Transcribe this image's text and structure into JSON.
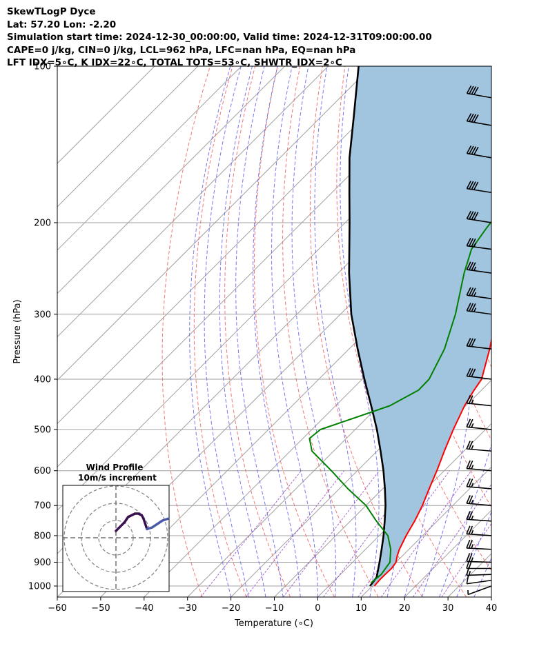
{
  "header": {
    "line1": "SkewTLogP Dyce",
    "line2": "Lat: 57.20   Lon: -2.20",
    "line3": "Simulation start time: 2024-12-30_00:00:00, Valid time: 2024-12-31T09:00:00.00",
    "line4": "CAPE=0 j/kg, CIN=0 j/kg, LCL=962 hPa, LFC=nan hPa, EQ=nan hPa",
    "line5": "LFT IDX=5∘C, K IDX=22∘C, TOTAL TOTS=53∘C, SHWTR_IDX=2∘C"
  },
  "chart_data": [
    {
      "type": "line",
      "chart_kind": "skew-T log-P",
      "xlabel": "Temperature (∘C)",
      "ylabel": "Pressure (hPa)",
      "xlim": [
        -60,
        40
      ],
      "ylim": [
        1050,
        100
      ],
      "y_scale": "log",
      "grid": true,
      "x_ticks": [
        -60,
        -50,
        -40,
        -30,
        -20,
        -10,
        0,
        10,
        20,
        30,
        40
      ],
      "y_ticks": [
        1000,
        900,
        800,
        700,
        600,
        500,
        400,
        300,
        200,
        100
      ],
      "colors": {
        "temperature": "#ff0000",
        "dewpoint": "#008000",
        "parcel": "#000000",
        "shading": "#a1c4df",
        "dry_adiabats": "#f06060",
        "moist_adiabats": "#6060f0",
        "mixing_ratio": "#9040c0",
        "isotherms": "#a0a0a0"
      },
      "series": [
        {
          "pressure": [
            1000,
            975,
            950,
            925,
            900,
            875,
            850,
            800,
            750,
            700,
            650,
            600,
            550,
            500,
            450,
            420,
            400,
            350,
            300,
            270,
            250,
            225,
            205,
            195,
            180,
            160,
            150,
            135,
            125,
            115,
            100
          ],
          "values": [
            10.5,
            10.3,
            10.3,
            10.4,
            10.0,
            8.8,
            7.8,
            6.2,
            4.8,
            3.0,
            0.7,
            -1.7,
            -4.5,
            -7.4,
            -10.3,
            -11.7,
            -12.5,
            -17.6,
            -24.0,
            -28.6,
            -32.0,
            -36.0,
            -40.0,
            -42.0,
            -43.0,
            -45.5,
            -47.4,
            -48.2,
            -49.3,
            -50.0,
            -51.0
          ]
        },
        {
          "pressure": [
            985,
            950,
            900,
            850,
            800,
            750,
            700,
            650,
            600,
            550,
            520,
            500,
            450,
            420,
            400,
            350,
            300,
            250,
            225,
            205,
            195,
            185,
            170,
            160,
            150,
            135,
            125,
            115,
            100
          ],
          "values": [
            9.0,
            9.4,
            8.6,
            5.8,
            2.0,
            -4.0,
            -10.0,
            -18.0,
            -26.0,
            -35.0,
            -38.5,
            -38.0,
            -27.5,
            -24.5,
            -24.6,
            -28.0,
            -33.5,
            -41.0,
            -44.8,
            -46.2,
            -46.8,
            -47.0,
            -46.0,
            -46.8,
            -47.6,
            -48.7,
            -49.6,
            -50.3,
            -51.2
          ]
        },
        {
          "pressure": [
            1000,
            962,
            900,
            850,
            800,
            750,
            700,
            650,
            600,
            550,
            500,
            450,
            400,
            350,
            300,
            250,
            200,
            175,
            150,
            125,
            100
          ],
          "values": [
            9.5,
            9.0,
            6.2,
            3.7,
            1.0,
            -2.1,
            -5.5,
            -9.5,
            -14.0,
            -19.2,
            -25.0,
            -31.8,
            -39.5,
            -48.0,
            -57.5,
            -67.5,
            -79.0,
            -86.0,
            -94.0,
            -102.5,
            -113.0
          ]
        }
      ],
      "wind_barbs": {
        "pressure": [
          1000,
          975,
          950,
          925,
          900,
          850,
          800,
          750,
          700,
          650,
          600,
          550,
          500,
          450,
          400,
          350,
          300,
          280,
          250,
          225,
          200,
          175,
          150,
          130,
          115
        ],
        "speed_ms": [
          6,
          9,
          14,
          20,
          25,
          25,
          25,
          25,
          25,
          25,
          25,
          25,
          25,
          25,
          30,
          30,
          35,
          35,
          35,
          35,
          40,
          40,
          40,
          40,
          40
        ],
        "direction_deg": [
          250,
          262,
          268,
          270,
          272,
          273,
          274,
          274,
          275,
          275,
          275,
          275,
          276,
          276,
          277,
          277,
          278,
          278,
          278,
          278,
          279,
          279,
          280,
          280,
          280
        ]
      }
    },
    {
      "type": "line",
      "chart_kind": "hodograph",
      "title": "Wind Profile",
      "subtitle": "10m/s increment",
      "ring_increment_ms": 10,
      "rings": [
        10,
        20,
        30
      ],
      "hodograph_u": [
        0,
        1,
        3,
        5,
        7,
        9,
        11,
        13,
        15,
        16,
        17,
        18,
        21,
        24,
        27,
        30,
        33,
        36,
        39
      ],
      "hodograph_v": [
        4,
        5,
        7,
        9,
        12,
        13,
        14,
        14,
        13,
        11,
        8,
        5,
        6,
        8,
        10,
        11,
        12,
        12,
        12
      ],
      "colors": {
        "early": "#3a0f4f",
        "late": "#4a5aa8"
      }
    }
  ]
}
